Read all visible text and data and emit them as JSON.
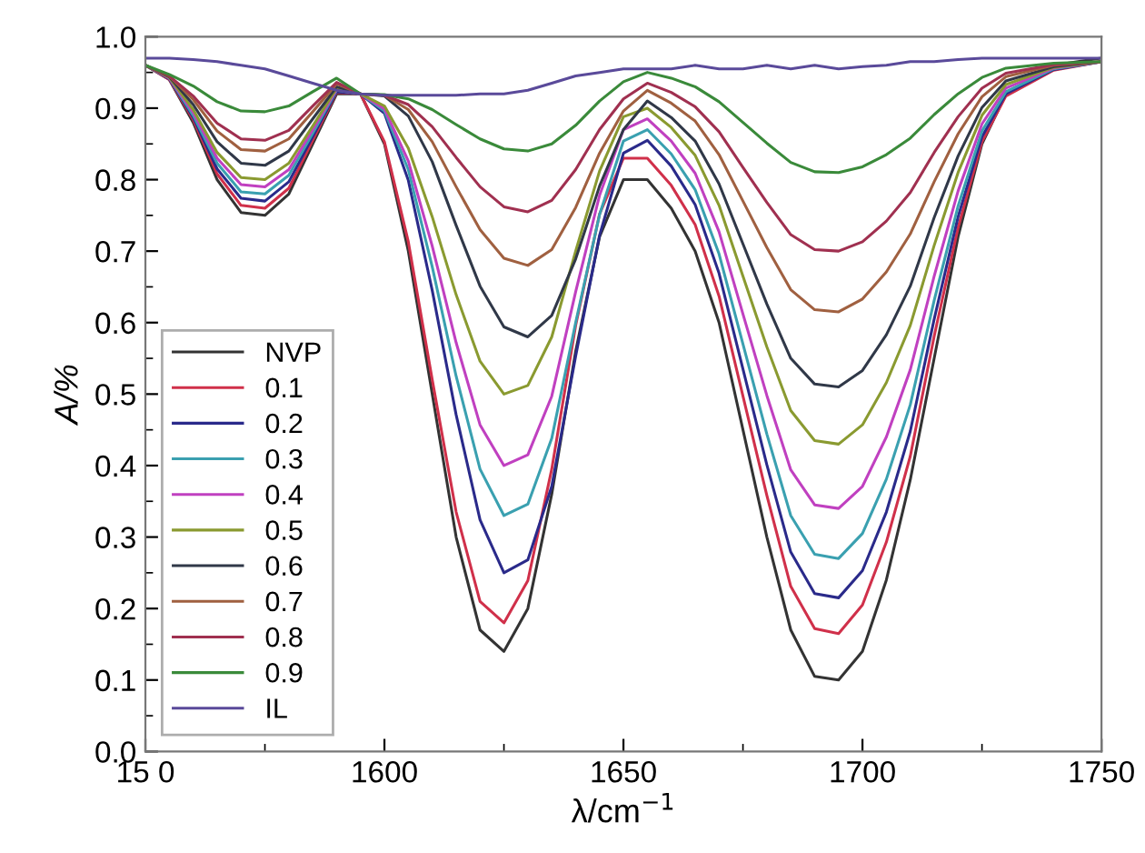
{
  "chart_data": {
    "type": "line",
    "xlabel": "λ/cm$^{−1}$",
    "ylabel": "A/%",
    "xlim": [
      1550,
      1750
    ],
    "xticks": [
      {
        "value": 1550,
        "label": "15 0"
      },
      1600,
      1650,
      1700,
      1750
    ],
    "ylim": [
      0.0,
      1.0
    ],
    "yticks": [
      {
        "value": 0.0,
        "label": "0.0"
      },
      0.1,
      0.2,
      0.3,
      0.4,
      0.5,
      0.6,
      0.7,
      0.8,
      0.9,
      {
        "value": 1.0,
        "label": "1.0"
      }
    ],
    "grid": false,
    "legend": "bottom left",
    "marker": "none",
    "line_style": "solid",
    "x": [
      1550,
      1555,
      1560,
      1565,
      1570,
      1575,
      1580,
      1585,
      1590,
      1595,
      1600,
      1605,
      1610,
      1615,
      1620,
      1625,
      1630,
      1635,
      1640,
      1645,
      1650,
      1655,
      1660,
      1665,
      1670,
      1675,
      1680,
      1685,
      1690,
      1695,
      1700,
      1705,
      1710,
      1715,
      1720,
      1725,
      1730,
      1740,
      1750
    ],
    "series": [
      {
        "name": "NVP",
        "color": "#333333",
        "values": [
          0.96,
          0.94,
          0.88,
          0.8,
          0.754,
          0.75,
          0.78,
          0.85,
          0.92,
          0.92,
          0.85,
          0.7,
          0.5,
          0.3,
          0.17,
          0.14,
          0.2,
          0.36,
          0.56,
          0.72,
          0.8,
          0.8,
          0.76,
          0.7,
          0.6,
          0.45,
          0.3,
          0.17,
          0.105,
          0.1,
          0.14,
          0.24,
          0.38,
          0.55,
          0.72,
          0.85,
          0.92,
          0.96,
          0.97
        ]
      },
      {
        "name": "0.1",
        "color": "#d0304a",
        "values": [
          0.96,
          0.94,
          0.884,
          0.808,
          0.764,
          0.76,
          0.788,
          0.855,
          0.922,
          0.92,
          0.853,
          0.713,
          0.52,
          0.335,
          0.21,
          0.18,
          0.239,
          0.395,
          0.596,
          0.752,
          0.83,
          0.83,
          0.792,
          0.737,
          0.637,
          0.497,
          0.358,
          0.231,
          0.172,
          0.165,
          0.205,
          0.293,
          0.413,
          0.581,
          0.733,
          0.853,
          0.917,
          0.953,
          0.965
        ]
      },
      {
        "name": "0.2",
        "color": "#2a2a8a",
        "values": [
          0.96,
          0.941,
          0.887,
          0.815,
          0.774,
          0.77,
          0.797,
          0.86,
          0.923,
          0.92,
          0.893,
          0.799,
          0.645,
          0.471,
          0.324,
          0.25,
          0.268,
          0.371,
          0.553,
          0.722,
          0.837,
          0.855,
          0.819,
          0.765,
          0.669,
          0.535,
          0.401,
          0.279,
          0.221,
          0.215,
          0.253,
          0.335,
          0.448,
          0.605,
          0.748,
          0.86,
          0.92,
          0.954,
          0.965
        ]
      },
      {
        "name": "0.3",
        "color": "#3aa0b0",
        "values": [
          0.96,
          0.942,
          0.89,
          0.823,
          0.783,
          0.78,
          0.806,
          0.865,
          0.925,
          0.92,
          0.896,
          0.814,
          0.678,
          0.525,
          0.395,
          0.33,
          0.346,
          0.438,
          0.6,
          0.751,
          0.854,
          0.87,
          0.836,
          0.786,
          0.696,
          0.57,
          0.444,
          0.33,
          0.276,
          0.27,
          0.305,
          0.381,
          0.485,
          0.631,
          0.763,
          0.868,
          0.923,
          0.955,
          0.965
        ]
      },
      {
        "name": "0.4",
        "color": "#c040c0",
        "values": [
          0.96,
          0.942,
          0.894,
          0.83,
          0.793,
          0.79,
          0.814,
          0.87,
          0.926,
          0.92,
          0.899,
          0.826,
          0.707,
          0.572,
          0.457,
          0.4,
          0.415,
          0.497,
          0.643,
          0.778,
          0.87,
          0.885,
          0.854,
          0.809,
          0.727,
          0.612,
          0.498,
          0.394,
          0.345,
          0.34,
          0.371,
          0.44,
          0.534,
          0.665,
          0.784,
          0.878,
          0.928,
          0.956,
          0.965
        ]
      },
      {
        "name": "0.5",
        "color": "#8a9a30",
        "values": [
          0.96,
          0.943,
          0.898,
          0.838,
          0.803,
          0.8,
          0.823,
          0.875,
          0.928,
          0.92,
          0.903,
          0.844,
          0.748,
          0.639,
          0.546,
          0.5,
          0.512,
          0.58,
          0.7,
          0.812,
          0.888,
          0.9,
          0.873,
          0.834,
          0.764,
          0.665,
          0.566,
          0.477,
          0.435,
          0.43,
          0.457,
          0.516,
          0.596,
          0.708,
          0.81,
          0.89,
          0.933,
          0.957,
          0.965
        ]
      },
      {
        "name": "0.6",
        "color": "#303848",
        "values": [
          0.96,
          0.944,
          0.905,
          0.853,
          0.823,
          0.82,
          0.84,
          0.885,
          0.93,
          0.92,
          0.917,
          0.889,
          0.825,
          0.736,
          0.651,
          0.594,
          0.58,
          0.61,
          0.689,
          0.791,
          0.87,
          0.91,
          0.887,
          0.854,
          0.794,
          0.71,
          0.626,
          0.55,
          0.514,
          0.51,
          0.533,
          0.583,
          0.651,
          0.747,
          0.833,
          0.901,
          0.938,
          0.958,
          0.965
        ]
      },
      {
        "name": "0.7",
        "color": "#a06040",
        "values": [
          0.96,
          0.945,
          0.912,
          0.868,
          0.842,
          0.84,
          0.857,
          0.895,
          0.934,
          0.92,
          0.918,
          0.898,
          0.853,
          0.79,
          0.73,
          0.69,
          0.68,
          0.702,
          0.761,
          0.837,
          0.896,
          0.925,
          0.907,
          0.882,
          0.835,
          0.77,
          0.705,
          0.646,
          0.618,
          0.615,
          0.633,
          0.671,
          0.724,
          0.797,
          0.864,
          0.916,
          0.944,
          0.96,
          0.965
        ]
      },
      {
        "name": "0.8",
        "color": "#a03050",
        "values": [
          0.96,
          0.945,
          0.917,
          0.879,
          0.857,
          0.855,
          0.869,
          0.903,
          0.936,
          0.92,
          0.918,
          0.905,
          0.874,
          0.831,
          0.79,
          0.762,
          0.755,
          0.771,
          0.814,
          0.87,
          0.913,
          0.935,
          0.922,
          0.902,
          0.867,
          0.817,
          0.768,
          0.723,
          0.702,
          0.7,
          0.713,
          0.742,
          0.782,
          0.838,
          0.888,
          0.928,
          0.949,
          0.961,
          0.965
        ]
      },
      {
        "name": "0.9",
        "color": "#3a8a3a",
        "values": [
          0.96,
          0.947,
          0.931,
          0.909,
          0.896,
          0.895,
          0.903,
          0.923,
          0.942,
          0.92,
          0.919,
          0.913,
          0.898,
          0.877,
          0.857,
          0.843,
          0.84,
          0.85,
          0.876,
          0.91,
          0.937,
          0.95,
          0.942,
          0.93,
          0.909,
          0.88,
          0.851,
          0.824,
          0.811,
          0.81,
          0.818,
          0.835,
          0.858,
          0.891,
          0.92,
          0.943,
          0.956,
          0.963,
          0.965
        ]
      },
      {
        "name": "IL",
        "color": "#5a4a9a",
        "values": [
          0.97,
          0.97,
          0.968,
          0.965,
          0.96,
          0.955,
          0.945,
          0.935,
          0.925,
          0.92,
          0.918,
          0.918,
          0.918,
          0.918,
          0.92,
          0.92,
          0.925,
          0.935,
          0.945,
          0.95,
          0.955,
          0.955,
          0.955,
          0.96,
          0.955,
          0.955,
          0.96,
          0.955,
          0.96,
          0.955,
          0.958,
          0.96,
          0.965,
          0.965,
          0.968,
          0.97,
          0.97,
          0.97,
          0.97
        ]
      }
    ]
  }
}
